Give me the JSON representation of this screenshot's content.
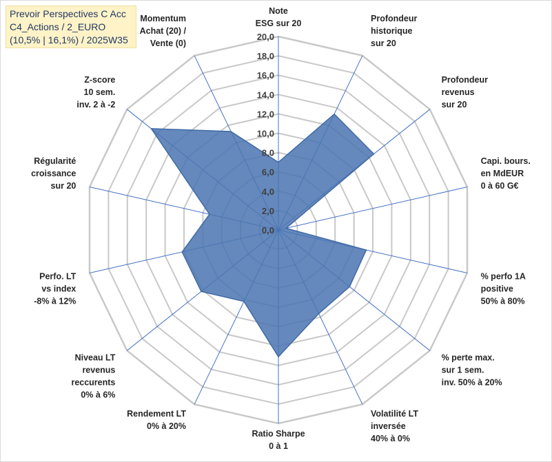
{
  "title_lines": [
    "Prevoir Perspectives C Acc",
    "C4_Actions / 2_EURO",
    "(10,5% | 16,1%) / 2025W35"
  ],
  "colors": {
    "fill": "#4a74b0",
    "stroke": "#3f6aa6",
    "grid": "#c8c8c8",
    "spoke": "#4472c4",
    "title_bg": "#fff3c7",
    "title_text": "#1f3864"
  },
  "chart_data": {
    "type": "radar",
    "r_range": [
      0,
      20
    ],
    "tick_step": 2,
    "tick_labels": [
      "0,0",
      "2,0",
      "4,0",
      "6,0",
      "8,0",
      "10,0",
      "12,0",
      "14,0",
      "16,0",
      "18,0",
      "20,0"
    ],
    "grid": true,
    "categories": [
      [
        "Note",
        "ESG sur 20"
      ],
      [
        "Profondeur",
        "historique",
        "sur 20"
      ],
      [
        "Profondeur",
        "revenus",
        "sur 20"
      ],
      [
        "Capi. bours.",
        "en MdEUR",
        "0 à 60 G€"
      ],
      [
        "% perfo 1A",
        "positive",
        "50% à 80%"
      ],
      [
        "% perte max.",
        "sur 1 sem.",
        "inv. 50% à 20%"
      ],
      [
        "Volatilité LT",
        "inversée",
        "40% à 0%"
      ],
      [
        "Ratio Sharpe",
        "0 à 1"
      ],
      [
        "Rendement LT",
        "0% à 20%"
      ],
      [
        "Niveau LT",
        "revenus",
        "reccurents",
        "0% à 6%"
      ],
      [
        "Perfo. LT",
        "vs index",
        "-8% à 12%"
      ],
      [
        "Régularité",
        "croissance",
        "sur 20"
      ],
      [
        "Z-score",
        "10 sem.",
        "inv. 2 à -2"
      ],
      [
        "Momentum",
        "Achat (20) /",
        "Vente (0)"
      ]
    ],
    "series": [
      {
        "values": [
          7.0,
          13.3,
          12.6,
          0.8,
          9.3,
          9.4,
          9.6,
          13.1,
          8.2,
          10.2,
          10.2,
          7.3,
          16.8,
          11.3
        ]
      }
    ]
  }
}
